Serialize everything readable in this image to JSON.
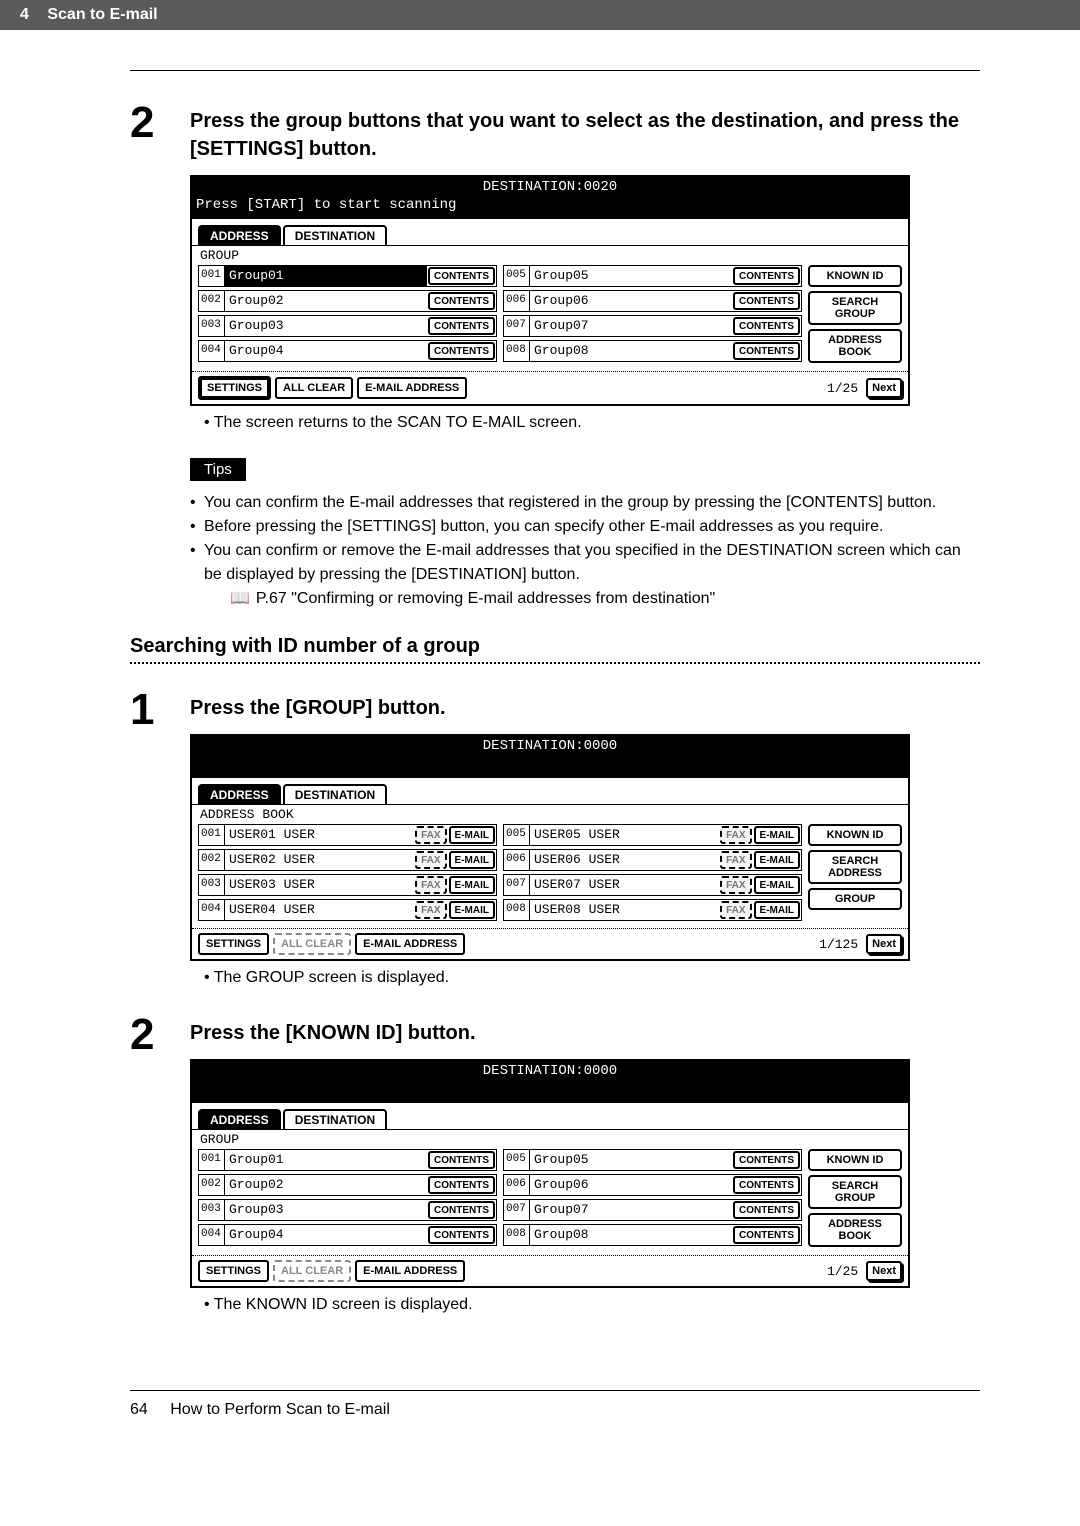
{
  "header": {
    "page_num": "4",
    "title": "Scan to E-mail"
  },
  "step2a": {
    "num": "2",
    "title": "Press the group buttons that you want to select as the destination, and press the [SETTINGS] button.",
    "panel": {
      "dest": "DESTINATION:0020",
      "prompt": "Press [START] to start scanning",
      "tab_address": "ADDRESS",
      "tab_destination": "DESTINATION",
      "section": "GROUP",
      "left": [
        {
          "n": "001",
          "name": "Group01",
          "sel": true
        },
        {
          "n": "002",
          "name": "Group02",
          "sel": false
        },
        {
          "n": "003",
          "name": "Group03",
          "sel": false
        },
        {
          "n": "004",
          "name": "Group04",
          "sel": false
        }
      ],
      "right": [
        {
          "n": "005",
          "name": "Group05",
          "sel": false
        },
        {
          "n": "006",
          "name": "Group06",
          "sel": false
        },
        {
          "n": "007",
          "name": "Group07",
          "sel": false
        },
        {
          "n": "008",
          "name": "Group08",
          "sel": false
        }
      ],
      "btn_contents": "CONTENTS",
      "side": [
        "KNOWN ID",
        "SEARCH GROUP",
        "ADDRESS BOOK"
      ],
      "bottom": {
        "settings": "SETTINGS",
        "allclear": "ALL CLEAR",
        "email": "E-MAIL ADDRESS",
        "page": "1/25",
        "next": "Next"
      }
    },
    "bullet": "The screen returns to the SCAN TO E-MAIL screen.",
    "tips_label": "Tips",
    "tips": [
      "You can confirm the E-mail addresses that registered in the group by pressing the [CONTENTS] button.",
      "Before pressing the [SETTINGS] button, you can specify other E-mail addresses as you require.",
      "You can confirm or remove the E-mail addresses that you specified in the DESTINATION screen which can be displayed by pressing the [DESTINATION] button."
    ],
    "tips_ref": "P.67 \"Confirming or removing E-mail addresses from destination\""
  },
  "subheading": "Searching with ID number of a group",
  "step1": {
    "num": "1",
    "title": "Press the [GROUP] button.",
    "panel": {
      "dest": "DESTINATION:0000",
      "tab_address": "ADDRESS",
      "tab_destination": "DESTINATION",
      "section": "ADDRESS BOOK",
      "left": [
        {
          "n": "001",
          "name": "USER01 USER"
        },
        {
          "n": "002",
          "name": "USER02 USER"
        },
        {
          "n": "003",
          "name": "USER03 USER"
        },
        {
          "n": "004",
          "name": "USER04 USER"
        }
      ],
      "right": [
        {
          "n": "005",
          "name": "USER05 USER"
        },
        {
          "n": "006",
          "name": "USER06 USER"
        },
        {
          "n": "007",
          "name": "USER07 USER"
        },
        {
          "n": "008",
          "name": "USER08 USER"
        }
      ],
      "btn_fax": "FAX",
      "btn_email": "E-MAIL",
      "side": [
        "KNOWN ID",
        "SEARCH ADDRESS",
        "GROUP"
      ],
      "bottom": {
        "settings": "SETTINGS",
        "allclear": "ALL CLEAR",
        "email": "E-MAIL ADDRESS",
        "page": "1/125",
        "next": "Next"
      }
    },
    "bullet": "The GROUP screen is displayed."
  },
  "step2b": {
    "num": "2",
    "title": "Press the [KNOWN ID] button.",
    "panel": {
      "dest": "DESTINATION:0000",
      "tab_address": "ADDRESS",
      "tab_destination": "DESTINATION",
      "section": "GROUP",
      "left": [
        {
          "n": "001",
          "name": "Group01"
        },
        {
          "n": "002",
          "name": "Group02"
        },
        {
          "n": "003",
          "name": "Group03"
        },
        {
          "n": "004",
          "name": "Group04"
        }
      ],
      "right": [
        {
          "n": "005",
          "name": "Group05"
        },
        {
          "n": "006",
          "name": "Group06"
        },
        {
          "n": "007",
          "name": "Group07"
        },
        {
          "n": "008",
          "name": "Group08"
        }
      ],
      "btn_contents": "CONTENTS",
      "side": [
        "KNOWN ID",
        "SEARCH GROUP",
        "ADDRESS BOOK"
      ],
      "bottom": {
        "settings": "SETTINGS",
        "allclear": "ALL CLEAR",
        "email": "E-MAIL ADDRESS",
        "page": "1/25",
        "next": "Next"
      }
    },
    "bullet": "The KNOWN ID screen is displayed."
  },
  "footer": {
    "page": "64",
    "text": "How to Perform Scan to E-mail"
  }
}
